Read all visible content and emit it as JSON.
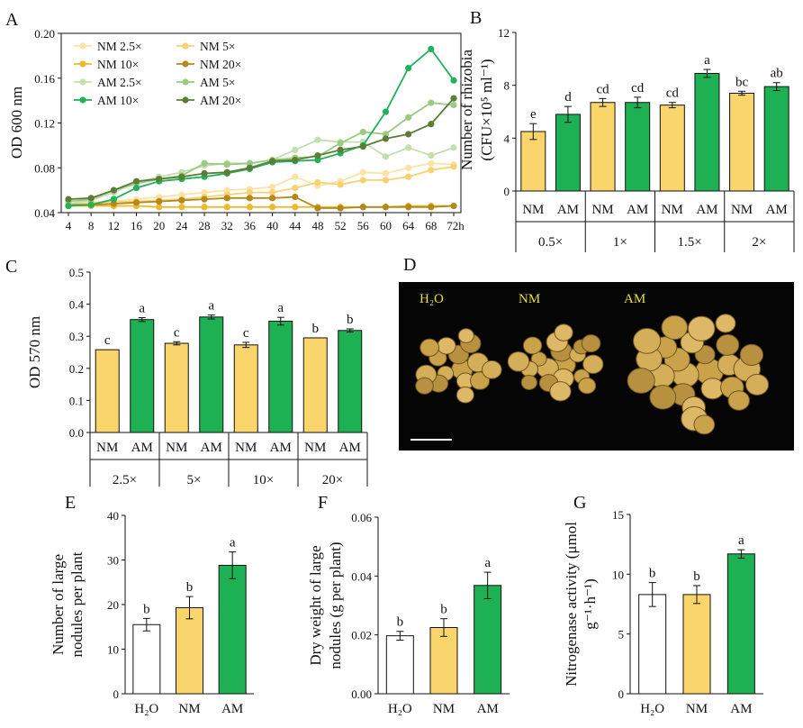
{
  "panel_letters": [
    "A",
    "B",
    "C",
    "D",
    "E",
    "F",
    "G"
  ],
  "colors": {
    "white": "#ffffff",
    "yellow": "#f9d56b",
    "green": "#1db154",
    "black": "#111111",
    "nm25": "#fbe3a5",
    "nm5": "#f7d274",
    "nm10": "#f0b82e",
    "nm20": "#b3891b",
    "am25": "#c2dfae",
    "am5": "#9cca82",
    "am10": "#23b15a",
    "am20": "#5d7d36"
  },
  "chart_data": [
    {
      "panel": "A",
      "type": "line",
      "ylabel": "OD 600 nm",
      "x": [
        4,
        8,
        12,
        16,
        20,
        24,
        28,
        32,
        36,
        40,
        44,
        48,
        52,
        56,
        60,
        64,
        68,
        72
      ],
      "x_tick_labels": [
        "4",
        "8",
        "12",
        "16",
        "20",
        "24",
        "28",
        "32",
        "36",
        "40",
        "44",
        "48",
        "52",
        "56",
        "60",
        "64",
        "68",
        "72h"
      ],
      "ylim": [
        0.04,
        0.2
      ],
      "y_ticks": [
        "0.04",
        "0.08",
        "0.12",
        "0.16",
        "0.20"
      ],
      "legend_position": "top-left",
      "series": [
        {
          "name": "NM 2.5×",
          "color_key": "nm25",
          "values": [
            0.046,
            0.047,
            0.05,
            0.052,
            0.054,
            0.056,
            0.058,
            0.06,
            0.061,
            0.063,
            0.072,
            0.064,
            0.068,
            0.076,
            0.075,
            0.08,
            0.084,
            0.083
          ]
        },
        {
          "name": "NM 5×",
          "color_key": "nm5",
          "values": [
            0.047,
            0.049,
            0.05,
            0.05,
            0.051,
            0.052,
            0.054,
            0.056,
            0.058,
            0.058,
            0.062,
            0.067,
            0.065,
            0.069,
            0.069,
            0.072,
            0.078,
            0.081
          ]
        },
        {
          "name": "NM 10×",
          "color_key": "nm10",
          "values": [
            0.046,
            0.046,
            0.046,
            0.046,
            0.045,
            0.045,
            0.045,
            0.045,
            0.045,
            0.045,
            0.045,
            0.045,
            0.045,
            0.045,
            0.045,
            0.046,
            0.046,
            0.046
          ]
        },
        {
          "name": "NM 20×",
          "color_key": "nm20",
          "values": [
            0.047,
            0.047,
            0.048,
            0.049,
            0.05,
            0.051,
            0.052,
            0.053,
            0.053,
            0.053,
            0.054,
            0.044,
            0.044,
            0.045,
            0.045,
            0.045,
            0.045,
            0.046
          ]
        },
        {
          "name": "AM 2.5×",
          "color_key": "am25",
          "values": [
            0.048,
            0.051,
            0.058,
            0.067,
            0.072,
            0.076,
            0.082,
            0.084,
            0.084,
            0.087,
            0.096,
            0.105,
            0.103,
            0.103,
            0.09,
            0.098,
            0.091,
            0.098
          ]
        },
        {
          "name": "AM 5×",
          "color_key": "am5",
          "values": [
            0.05,
            0.052,
            0.06,
            0.066,
            0.07,
            0.073,
            0.084,
            0.083,
            0.084,
            0.087,
            0.089,
            0.09,
            0.102,
            0.112,
            0.11,
            0.125,
            0.138,
            0.136
          ]
        },
        {
          "name": "AM 10×",
          "color_key": "am10",
          "values": [
            0.046,
            0.047,
            0.052,
            0.062,
            0.068,
            0.07,
            0.072,
            0.075,
            0.079,
            0.085,
            0.086,
            0.087,
            0.093,
            0.1,
            0.13,
            0.169,
            0.186,
            0.158
          ]
        },
        {
          "name": "AM 20×",
          "color_key": "am20",
          "values": [
            0.052,
            0.053,
            0.06,
            0.068,
            0.07,
            0.072,
            0.075,
            0.076,
            0.08,
            0.086,
            0.087,
            0.091,
            0.096,
            0.099,
            0.106,
            0.11,
            0.119,
            0.142
          ]
        }
      ]
    },
    {
      "panel": "B",
      "type": "bar",
      "ylabel": "Number of rhizobia",
      "ylabel2": "(CFU×10⁵ ml⁻¹)",
      "ylim": [
        0,
        12
      ],
      "y_ticks": [
        "0",
        "4",
        "8",
        "12"
      ],
      "groups": [
        "0.5×",
        "1×",
        "1.5×",
        "2×"
      ],
      "bars": [
        {
          "label": "NM",
          "group": 0,
          "value": 4.5,
          "error": 0.6,
          "letter": "e",
          "color_key": "yellow"
        },
        {
          "label": "AM",
          "group": 0,
          "value": 5.8,
          "error": 0.6,
          "letter": "d",
          "color_key": "green"
        },
        {
          "label": "NM",
          "group": 1,
          "value": 6.7,
          "error": 0.3,
          "letter": "cd",
          "color_key": "yellow"
        },
        {
          "label": "AM",
          "group": 1,
          "value": 6.7,
          "error": 0.4,
          "letter": "cd",
          "color_key": "green"
        },
        {
          "label": "NM",
          "group": 2,
          "value": 6.5,
          "error": 0.2,
          "letter": "cd",
          "color_key": "yellow"
        },
        {
          "label": "AM",
          "group": 2,
          "value": 8.9,
          "error": 0.3,
          "letter": "a",
          "color_key": "green"
        },
        {
          "label": "NM",
          "group": 3,
          "value": 7.4,
          "error": 0.15,
          "letter": "bc",
          "color_key": "yellow"
        },
        {
          "label": "AM",
          "group": 3,
          "value": 7.9,
          "error": 0.3,
          "letter": "ab",
          "color_key": "green"
        }
      ]
    },
    {
      "panel": "C",
      "type": "bar",
      "ylabel": "OD 570 nm",
      "ylim": [
        0,
        0.5
      ],
      "y_ticks": [
        "0.0",
        "0.1",
        "0.2",
        "0.3",
        "0.4",
        "0.5"
      ],
      "groups": [
        "2.5×",
        "5×",
        "10×",
        "20×"
      ],
      "bars": [
        {
          "label": "NM",
          "group": 0,
          "value": 0.258,
          "error": 0,
          "letter": "c",
          "color_key": "yellow"
        },
        {
          "label": "AM",
          "group": 0,
          "value": 0.352,
          "error": 0.006,
          "letter": "a",
          "color_key": "green"
        },
        {
          "label": "NM",
          "group": 1,
          "value": 0.278,
          "error": 0.005,
          "letter": "c",
          "color_key": "yellow"
        },
        {
          "label": "AM",
          "group": 1,
          "value": 0.36,
          "error": 0.006,
          "letter": "a",
          "color_key": "green"
        },
        {
          "label": "NM",
          "group": 2,
          "value": 0.273,
          "error": 0.008,
          "letter": "c",
          "color_key": "yellow"
        },
        {
          "label": "AM",
          "group": 2,
          "value": 0.347,
          "error": 0.012,
          "letter": "a",
          "color_key": "green"
        },
        {
          "label": "NM",
          "group": 3,
          "value": 0.295,
          "error": 0,
          "letter": "b",
          "color_key": "yellow"
        },
        {
          "label": "AM",
          "group": 3,
          "value": 0.318,
          "error": 0.005,
          "letter": "b",
          "color_key": "green"
        }
      ]
    },
    {
      "panel": "E",
      "type": "bar",
      "ylabel": "Number of large",
      "ylabel2": "nodules per plant",
      "ylim": [
        0,
        40
      ],
      "y_ticks": [
        "0",
        "10",
        "20",
        "30",
        "40"
      ],
      "bars": [
        {
          "label": "H₂O",
          "value": 15.5,
          "error": 1.4,
          "letter": "b",
          "color_key": "white"
        },
        {
          "label": "NM",
          "value": 19.3,
          "error": 2.5,
          "letter": "b",
          "color_key": "yellow"
        },
        {
          "label": "AM",
          "value": 28.8,
          "error": 3.0,
          "letter": "a",
          "color_key": "green"
        }
      ]
    },
    {
      "panel": "F",
      "type": "bar",
      "ylabel": "Dry weight of large",
      "ylabel2": "nodules (g per plant)",
      "ylim": [
        0,
        0.06
      ],
      "y_ticks": [
        "0.00",
        "0.02",
        "0.04",
        "0.06"
      ],
      "bars": [
        {
          "label": "H₂O",
          "value": 0.0197,
          "error": 0.0015,
          "letter": "b",
          "color_key": "white"
        },
        {
          "label": "NM",
          "value": 0.0225,
          "error": 0.003,
          "letter": "b",
          "color_key": "yellow"
        },
        {
          "label": "AM",
          "value": 0.0368,
          "error": 0.0045,
          "letter": "a",
          "color_key": "green"
        }
      ]
    },
    {
      "panel": "G",
      "type": "bar",
      "ylabel": "Nitrogenase activity (μmol",
      "ylabel2": "g⁻¹·h⁻¹)",
      "ylim": [
        0,
        15
      ],
      "y_ticks": [
        "0",
        "5",
        "10",
        "15"
      ],
      "bars": [
        {
          "label": "H₂O",
          "value": 8.3,
          "error": 1.0,
          "letter": "b",
          "color_key": "white"
        },
        {
          "label": "NM",
          "value": 8.3,
          "error": 0.75,
          "letter": "b",
          "color_key": "yellow"
        },
        {
          "label": "AM",
          "value": 11.7,
          "error": 0.35,
          "letter": "a",
          "color_key": "green"
        }
      ]
    }
  ],
  "photo": {
    "labels": [
      "H₂O",
      "NM",
      "AM"
    ]
  }
}
